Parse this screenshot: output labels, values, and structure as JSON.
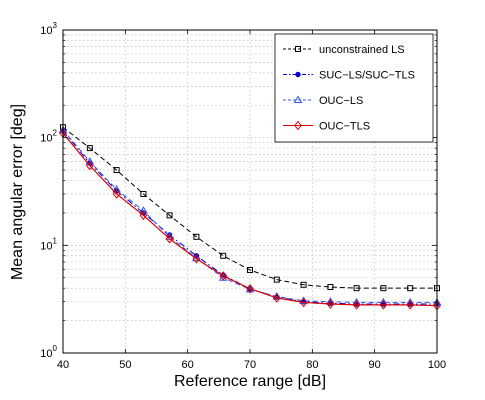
{
  "chart_data": {
    "type": "line",
    "title": "",
    "xlabel": "Reference range [dB]",
    "ylabel": "Mean angular error [deg]",
    "xlim": [
      40,
      100
    ],
    "ylim": [
      1,
      1000
    ],
    "y_scale": "log",
    "grid": true,
    "legend_position": "top-right",
    "x_ticks": [
      {
        "value": 40,
        "label": "40"
      },
      {
        "value": 50,
        "label": "50"
      },
      {
        "value": 60,
        "label": "60"
      },
      {
        "value": 70,
        "label": "70"
      },
      {
        "value": 80,
        "label": "80"
      },
      {
        "value": 90,
        "label": "90"
      },
      {
        "value": 100,
        "label": "100"
      }
    ],
    "y_ticks": [
      {
        "value": 1,
        "base": "10",
        "exp": "0"
      },
      {
        "value": 10,
        "base": "10",
        "exp": "1"
      },
      {
        "value": 100,
        "base": "10",
        "exp": "2"
      },
      {
        "value": 1000,
        "base": "10",
        "exp": "3"
      }
    ],
    "x": [
      40,
      44.3,
      48.6,
      52.9,
      57.1,
      61.4,
      65.7,
      70,
      74.3,
      78.6,
      82.9,
      87.1,
      91.4,
      95.7,
      100
    ],
    "series": [
      {
        "name": "unconstrained LS",
        "color": "#000000",
        "dash": "dashed",
        "marker": "square",
        "values": [
          125,
          80,
          50,
          30,
          19,
          12,
          8,
          5.9,
          4.8,
          4.3,
          4.1,
          4.0,
          4.0,
          4.0,
          4.0
        ]
      },
      {
        "name": "SUC−LS/SUC−TLS",
        "color": "#0000cc",
        "dash": "dashdot",
        "marker": "dot",
        "values": [
          115,
          58,
          32,
          20,
          12.5,
          8,
          5.3,
          3.95,
          3.3,
          3.0,
          2.9,
          2.85,
          2.85,
          2.85,
          2.85
        ]
      },
      {
        "name": "OUC−LS",
        "color": "#3355ee",
        "dash": "dashed",
        "marker": "triangle",
        "values": [
          118,
          60,
          33,
          21,
          12,
          7.6,
          5.0,
          3.9,
          3.35,
          3.05,
          3.0,
          2.95,
          2.95,
          2.95,
          2.95
        ]
      },
      {
        "name": "OUC−TLS",
        "color": "#dd0000",
        "dash": "solid",
        "marker": "diamond",
        "values": [
          110,
          55,
          30,
          19,
          11.5,
          7.5,
          5.2,
          3.95,
          3.25,
          2.95,
          2.85,
          2.8,
          2.8,
          2.8,
          2.75
        ]
      }
    ]
  }
}
